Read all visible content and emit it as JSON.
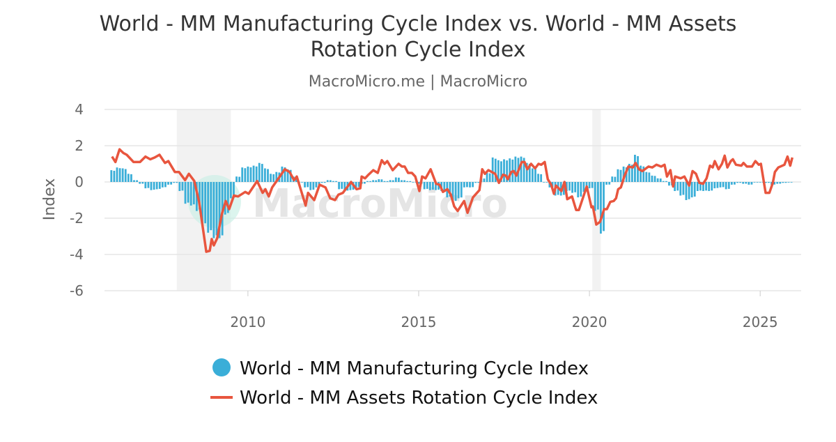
{
  "chart_data": {
    "type": "bar+line",
    "title_line1": "World - MM Manufacturing Cycle Index vs. World - MM Assets",
    "title_line2": "Rotation Cycle Index",
    "subtitle": "MacroMicro.me | MacroMicro",
    "ylabel": "Index",
    "ylim": [
      -6,
      4
    ],
    "yticks": [
      "4",
      "2",
      "0",
      "-2",
      "-4",
      "-6"
    ],
    "xlim": [
      2005.8,
      2026.2
    ],
    "xticks": [
      "2010",
      "2015",
      "2020",
      "2025"
    ],
    "grid": true,
    "legend_position": "bottom",
    "watermark": "MacroMicro",
    "shaded_periods": [
      [
        "2007-12",
        "2009-06"
      ],
      [
        "2020-02",
        "2020-04"
      ]
    ],
    "colors": {
      "bars": "#3aaed8",
      "line": "#e8553e",
      "shade": "#f2f2f2",
      "grid": "#e6e6e6"
    },
    "series": [
      {
        "name": "World - MM Manufacturing Cycle Index",
        "type": "bar",
        "points": [
          [
            "2006-01",
            0.65
          ],
          [
            "2006-03",
            0.8
          ],
          [
            "2006-05",
            0.75
          ],
          [
            "2006-07",
            0.45
          ],
          [
            "2006-09",
            0.1
          ],
          [
            "2006-11",
            -0.1
          ],
          [
            "2007-01",
            -0.35
          ],
          [
            "2007-03",
            -0.45
          ],
          [
            "2007-05",
            -0.4
          ],
          [
            "2007-07",
            -0.3
          ],
          [
            "2007-09",
            -0.15
          ],
          [
            "2007-11",
            -0.05
          ],
          [
            "2008-01",
            -0.5
          ],
          [
            "2008-03",
            -1.2
          ],
          [
            "2008-05",
            -1.3
          ],
          [
            "2008-07",
            -1.6
          ],
          [
            "2008-09",
            -2.4
          ],
          [
            "2008-11",
            -2.8
          ],
          [
            "2009-01",
            -3.1
          ],
          [
            "2009-03",
            -3.1
          ],
          [
            "2009-05",
            -1.8
          ],
          [
            "2009-07",
            -0.9
          ],
          [
            "2009-09",
            0.3
          ],
          [
            "2009-11",
            0.8
          ],
          [
            "2010-01",
            0.85
          ],
          [
            "2010-03",
            0.9
          ],
          [
            "2010-05",
            1.05
          ],
          [
            "2010-07",
            0.75
          ],
          [
            "2010-09",
            0.45
          ],
          [
            "2010-11",
            0.55
          ],
          [
            "2011-01",
            0.85
          ],
          [
            "2011-03",
            0.7
          ],
          [
            "2011-05",
            0.3
          ],
          [
            "2011-07",
            0.0
          ],
          [
            "2011-09",
            -0.3
          ],
          [
            "2011-11",
            -0.45
          ],
          [
            "2012-01",
            -0.3
          ],
          [
            "2012-03",
            -0.05
          ],
          [
            "2012-05",
            0.1
          ],
          [
            "2012-07",
            0.05
          ],
          [
            "2012-09",
            -0.4
          ],
          [
            "2012-11",
            -0.5
          ],
          [
            "2013-01",
            -0.45
          ],
          [
            "2013-03",
            -0.3
          ],
          [
            "2013-05",
            -0.1
          ],
          [
            "2013-07",
            0.05
          ],
          [
            "2013-09",
            0.1
          ],
          [
            "2013-11",
            0.15
          ],
          [
            "2014-01",
            0.05
          ],
          [
            "2014-03",
            0.1
          ],
          [
            "2014-05",
            0.25
          ],
          [
            "2014-07",
            0.1
          ],
          [
            "2014-09",
            0.05
          ],
          [
            "2014-11",
            0.0
          ],
          [
            "2015-01",
            -0.1
          ],
          [
            "2015-03",
            -0.4
          ],
          [
            "2015-05",
            -0.45
          ],
          [
            "2015-07",
            -0.45
          ],
          [
            "2015-09",
            -0.5
          ],
          [
            "2015-11",
            -0.85
          ],
          [
            "2016-01",
            -1.1
          ],
          [
            "2016-03",
            -0.9
          ],
          [
            "2016-05",
            -0.3
          ],
          [
            "2016-07",
            -0.3
          ],
          [
            "2016-09",
            -0.05
          ],
          [
            "2016-11",
            0.2
          ],
          [
            "2017-01",
            0.5
          ],
          [
            "2017-03",
            1.35
          ],
          [
            "2017-05",
            1.2
          ],
          [
            "2017-07",
            1.25
          ],
          [
            "2017-09",
            1.3
          ],
          [
            "2017-11",
            1.4
          ],
          [
            "2018-01",
            1.4
          ],
          [
            "2018-03",
            1.05
          ],
          [
            "2018-05",
            0.75
          ],
          [
            "2018-07",
            0.45
          ],
          [
            "2018-09",
            0.0
          ],
          [
            "2018-11",
            -0.3
          ],
          [
            "2019-01",
            -0.75
          ],
          [
            "2019-03",
            -0.75
          ],
          [
            "2019-05",
            -0.5
          ],
          [
            "2019-07",
            -0.6
          ],
          [
            "2019-09",
            -0.85
          ],
          [
            "2019-11",
            -0.55
          ],
          [
            "2020-01",
            -0.35
          ],
          [
            "2020-03",
            -1.6
          ],
          [
            "2020-05",
            -2.85
          ],
          [
            "2020-07",
            -0.15
          ],
          [
            "2020-09",
            0.3
          ],
          [
            "2020-11",
            0.7
          ],
          [
            "2021-01",
            0.85
          ],
          [
            "2021-03",
            1.0
          ],
          [
            "2021-05",
            1.5
          ],
          [
            "2021-07",
            0.9
          ],
          [
            "2021-09",
            0.55
          ],
          [
            "2021-11",
            0.35
          ],
          [
            "2022-01",
            0.2
          ],
          [
            "2022-03",
            0.05
          ],
          [
            "2022-05",
            -0.2
          ],
          [
            "2022-07",
            -0.5
          ],
          [
            "2022-09",
            -0.75
          ],
          [
            "2022-11",
            -1.0
          ],
          [
            "2023-01",
            -0.85
          ],
          [
            "2023-03",
            -0.5
          ],
          [
            "2023-05",
            -0.5
          ],
          [
            "2023-07",
            -0.5
          ],
          [
            "2023-09",
            -0.35
          ],
          [
            "2023-11",
            -0.3
          ],
          [
            "2024-01",
            -0.4
          ],
          [
            "2024-03",
            -0.15
          ],
          [
            "2024-05",
            -0.05
          ],
          [
            "2024-07",
            -0.1
          ],
          [
            "2024-09",
            -0.15
          ],
          [
            "2024-11",
            0.0
          ],
          [
            "2025-01",
            0.0
          ],
          [
            "2025-03",
            -0.05
          ],
          [
            "2025-05",
            -0.15
          ],
          [
            "2025-07",
            -0.1
          ],
          [
            "2025-09",
            -0.05
          ],
          [
            "2025-11",
            -0.03
          ]
        ]
      },
      {
        "name": "World - MM Assets Rotation Cycle Index",
        "type": "line",
        "points": [
          [
            2006.02,
            1.4
          ],
          [
            2006.12,
            1.1
          ],
          [
            2006.24,
            1.8
          ],
          [
            2006.35,
            1.6
          ],
          [
            2006.45,
            1.5
          ],
          [
            2006.65,
            1.1
          ],
          [
            2006.84,
            1.1
          ],
          [
            2007.0,
            1.4
          ],
          [
            2007.14,
            1.25
          ],
          [
            2007.27,
            1.35
          ],
          [
            2007.41,
            1.5
          ],
          [
            2007.57,
            1.05
          ],
          [
            2007.67,
            1.15
          ],
          [
            2007.86,
            0.55
          ],
          [
            2007.98,
            0.55
          ],
          [
            2008.16,
            0.1
          ],
          [
            2008.27,
            0.45
          ],
          [
            2008.43,
            0.05
          ],
          [
            2008.57,
            -1.1
          ],
          [
            2008.78,
            -3.85
          ],
          [
            2008.88,
            -3.8
          ],
          [
            2008.94,
            -3.15
          ],
          [
            2009.0,
            -3.5
          ],
          [
            2009.1,
            -3.1
          ],
          [
            2009.24,
            -1.75
          ],
          [
            2009.35,
            -1.05
          ],
          [
            2009.45,
            -1.5
          ],
          [
            2009.59,
            -0.75
          ],
          [
            2009.71,
            -0.8
          ],
          [
            2009.92,
            -0.55
          ],
          [
            2010.02,
            -0.65
          ],
          [
            2010.27,
            0.05
          ],
          [
            2010.43,
            -0.6
          ],
          [
            2010.51,
            -0.4
          ],
          [
            2010.61,
            -0.8
          ],
          [
            2010.71,
            -0.3
          ],
          [
            2010.86,
            0.1
          ],
          [
            2011.08,
            0.7
          ],
          [
            2011.22,
            0.55
          ],
          [
            2011.35,
            0.1
          ],
          [
            2011.43,
            0.3
          ],
          [
            2011.69,
            -1.3
          ],
          [
            2011.76,
            -0.6
          ],
          [
            2011.94,
            -1.0
          ],
          [
            2012.1,
            -0.15
          ],
          [
            2012.27,
            -0.3
          ],
          [
            2012.41,
            -0.9
          ],
          [
            2012.55,
            -1.0
          ],
          [
            2012.65,
            -0.7
          ],
          [
            2012.78,
            -0.6
          ],
          [
            2013.02,
            0.0
          ],
          [
            2013.18,
            -0.4
          ],
          [
            2013.29,
            -0.35
          ],
          [
            2013.33,
            0.3
          ],
          [
            2013.43,
            0.2
          ],
          [
            2013.53,
            0.4
          ],
          [
            2013.67,
            0.65
          ],
          [
            2013.8,
            0.5
          ],
          [
            2013.92,
            1.2
          ],
          [
            2014.0,
            1.0
          ],
          [
            2014.08,
            1.15
          ],
          [
            2014.24,
            0.65
          ],
          [
            2014.41,
            1.0
          ],
          [
            2014.51,
            0.85
          ],
          [
            2014.59,
            0.85
          ],
          [
            2014.69,
            0.5
          ],
          [
            2014.8,
            0.5
          ],
          [
            2014.9,
            0.3
          ],
          [
            2015.02,
            -0.5
          ],
          [
            2015.1,
            0.3
          ],
          [
            2015.2,
            0.2
          ],
          [
            2015.35,
            0.7
          ],
          [
            2015.51,
            -0.1
          ],
          [
            2015.61,
            -0.15
          ],
          [
            2015.71,
            -0.55
          ],
          [
            2015.84,
            -0.4
          ],
          [
            2015.94,
            -0.7
          ],
          [
            2016.04,
            -1.35
          ],
          [
            2016.14,
            -1.6
          ],
          [
            2016.33,
            -1.05
          ],
          [
            2016.43,
            -1.7
          ],
          [
            2016.59,
            -0.85
          ],
          [
            2016.78,
            -0.45
          ],
          [
            2016.86,
            0.7
          ],
          [
            2016.94,
            0.45
          ],
          [
            2017.04,
            0.65
          ],
          [
            2017.24,
            0.45
          ],
          [
            2017.35,
            -0.05
          ],
          [
            2017.47,
            0.4
          ],
          [
            2017.55,
            0.35
          ],
          [
            2017.61,
            0.15
          ],
          [
            2017.71,
            0.55
          ],
          [
            2017.78,
            0.6
          ],
          [
            2017.86,
            0.35
          ],
          [
            2018.02,
            1.1
          ],
          [
            2018.1,
            1.1
          ],
          [
            2018.18,
            0.7
          ],
          [
            2018.29,
            1.0
          ],
          [
            2018.41,
            0.75
          ],
          [
            2018.51,
            1.0
          ],
          [
            2018.59,
            0.95
          ],
          [
            2018.69,
            1.1
          ],
          [
            2018.78,
            0.15
          ],
          [
            2018.88,
            -0.15
          ],
          [
            2018.96,
            -0.65
          ],
          [
            2019.02,
            -0.2
          ],
          [
            2019.18,
            -0.5
          ],
          [
            2019.27,
            0.0
          ],
          [
            2019.35,
            -0.95
          ],
          [
            2019.49,
            -0.8
          ],
          [
            2019.61,
            -1.55
          ],
          [
            2019.69,
            -1.55
          ],
          [
            2019.92,
            -0.25
          ],
          [
            2020.06,
            -1.4
          ],
          [
            2020.1,
            -1.35
          ],
          [
            2020.2,
            -2.35
          ],
          [
            2020.31,
            -2.2
          ],
          [
            2020.43,
            -1.5
          ],
          [
            2020.51,
            -1.5
          ],
          [
            2020.61,
            -1.1
          ],
          [
            2020.71,
            -1.05
          ],
          [
            2020.78,
            -0.9
          ],
          [
            2020.84,
            -0.4
          ],
          [
            2020.92,
            -0.3
          ],
          [
            2021.02,
            0.3
          ],
          [
            2021.14,
            0.85
          ],
          [
            2021.27,
            0.8
          ],
          [
            2021.35,
            1.05
          ],
          [
            2021.45,
            0.7
          ],
          [
            2021.55,
            0.6
          ],
          [
            2021.73,
            0.85
          ],
          [
            2021.84,
            0.8
          ],
          [
            2021.96,
            0.95
          ],
          [
            2022.1,
            0.85
          ],
          [
            2022.2,
            0.95
          ],
          [
            2022.27,
            0.3
          ],
          [
            2022.37,
            0.65
          ],
          [
            2022.45,
            -0.25
          ],
          [
            2022.51,
            0.3
          ],
          [
            2022.67,
            0.2
          ],
          [
            2022.78,
            0.3
          ],
          [
            2022.92,
            -0.2
          ],
          [
            2023.02,
            0.6
          ],
          [
            2023.12,
            0.45
          ],
          [
            2023.22,
            -0.05
          ],
          [
            2023.33,
            -0.1
          ],
          [
            2023.43,
            0.2
          ],
          [
            2023.53,
            0.9
          ],
          [
            2023.61,
            0.8
          ],
          [
            2023.67,
            1.15
          ],
          [
            2023.78,
            0.7
          ],
          [
            2023.88,
            1.0
          ],
          [
            2023.96,
            1.45
          ],
          [
            2024.04,
            0.8
          ],
          [
            2024.14,
            1.15
          ],
          [
            2024.2,
            1.25
          ],
          [
            2024.29,
            0.95
          ],
          [
            2024.45,
            0.9
          ],
          [
            2024.51,
            1.05
          ],
          [
            2024.61,
            0.85
          ],
          [
            2024.76,
            0.85
          ],
          [
            2024.86,
            1.15
          ],
          [
            2024.96,
            0.95
          ],
          [
            2025.02,
            1.0
          ],
          [
            2025.16,
            -0.6
          ],
          [
            2025.27,
            -0.6
          ],
          [
            2025.37,
            -0.05
          ],
          [
            2025.43,
            0.55
          ],
          [
            2025.53,
            0.8
          ],
          [
            2025.71,
            0.95
          ],
          [
            2025.8,
            1.4
          ],
          [
            2025.88,
            0.9
          ],
          [
            2025.94,
            1.35
          ]
        ]
      }
    ]
  }
}
